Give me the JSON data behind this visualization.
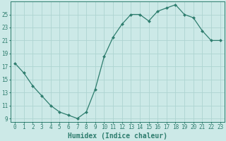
{
  "x": [
    0,
    1,
    2,
    3,
    4,
    5,
    6,
    7,
    8,
    9,
    10,
    11,
    12,
    13,
    14,
    15,
    16,
    17,
    18,
    19,
    20,
    21,
    22,
    23
  ],
  "y": [
    17.5,
    16.0,
    14.0,
    12.5,
    11.0,
    10.0,
    9.5,
    9.0,
    10.0,
    13.5,
    18.5,
    21.5,
    23.5,
    25.0,
    25.0,
    24.0,
    25.5,
    26.0,
    26.5,
    25.0,
    24.5,
    22.5,
    21.0,
    21.0
  ],
  "line_color": "#2e7d6e",
  "marker": "D",
  "marker_size": 2.0,
  "bg_color": "#cce9e7",
  "grid_color": "#aed4d1",
  "xlabel": "Humidex (Indice chaleur)",
  "xlim": [
    -0.5,
    23.5
  ],
  "ylim": [
    8.5,
    27
  ],
  "yticks": [
    9,
    11,
    13,
    15,
    17,
    19,
    21,
    23,
    25
  ],
  "xticks": [
    0,
    1,
    2,
    3,
    4,
    5,
    6,
    7,
    8,
    9,
    10,
    11,
    12,
    13,
    14,
    15,
    16,
    17,
    18,
    19,
    20,
    21,
    22,
    23
  ],
  "tick_fontsize": 5.5,
  "xlabel_fontsize": 7.0
}
